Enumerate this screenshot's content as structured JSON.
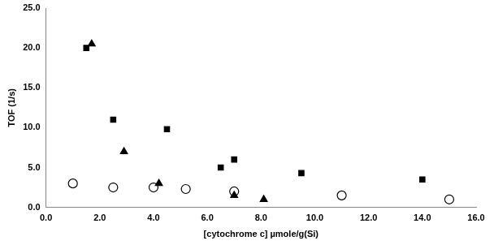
{
  "chart_data": {
    "type": "scatter",
    "x_label": "[cytochrome c] µmole/g(Si)",
    "y_label": "TOF (1/s)",
    "xlim": [
      0,
      16
    ],
    "xticks": [
      {
        "value": 0,
        "label": "0.0"
      },
      {
        "value": 2,
        "label": "2.0"
      },
      {
        "value": 4,
        "label": "4.0"
      },
      {
        "value": 6,
        "label": "6.0"
      },
      {
        "value": 8,
        "label": "8.0"
      },
      {
        "value": 10,
        "label": "10.0"
      },
      {
        "value": 12,
        "label": "12.0"
      },
      {
        "value": 14,
        "label": "14.0"
      },
      {
        "value": 16,
        "label": "16.0"
      }
    ],
    "ylim": [
      0,
      25
    ],
    "yticks": [
      {
        "value": 0,
        "label": "0.0"
      },
      {
        "value": 5,
        "label": "5.0"
      },
      {
        "value": 10,
        "label": "10.0"
      },
      {
        "value": 15,
        "label": "15.0"
      },
      {
        "value": 20,
        "label": "20.0"
      },
      {
        "value": 25,
        "label": "25.0"
      }
    ],
    "grid": false,
    "series": [
      {
        "color": "#000000",
        "marker": "square",
        "x": [
          1.5,
          2.5,
          4.5,
          6.5,
          7.0,
          9.5,
          14.0
        ],
        "values": [
          20.0,
          11.0,
          9.8,
          5.0,
          6.0,
          4.3,
          3.5
        ]
      },
      {
        "color": "#000000",
        "marker": "triangle",
        "x": [
          1.7,
          2.9,
          4.2,
          7.0,
          8.1
        ],
        "values": [
          20.5,
          7.0,
          3.0,
          1.5,
          1.0
        ]
      },
      {
        "color": "#000000",
        "marker": "open_circle",
        "x": [
          1.0,
          2.5,
          4.0,
          5.2,
          7.0,
          11.0,
          15.0
        ],
        "values": [
          3.0,
          2.5,
          2.5,
          2.3,
          2.0,
          1.5,
          1.0
        ]
      }
    ]
  }
}
